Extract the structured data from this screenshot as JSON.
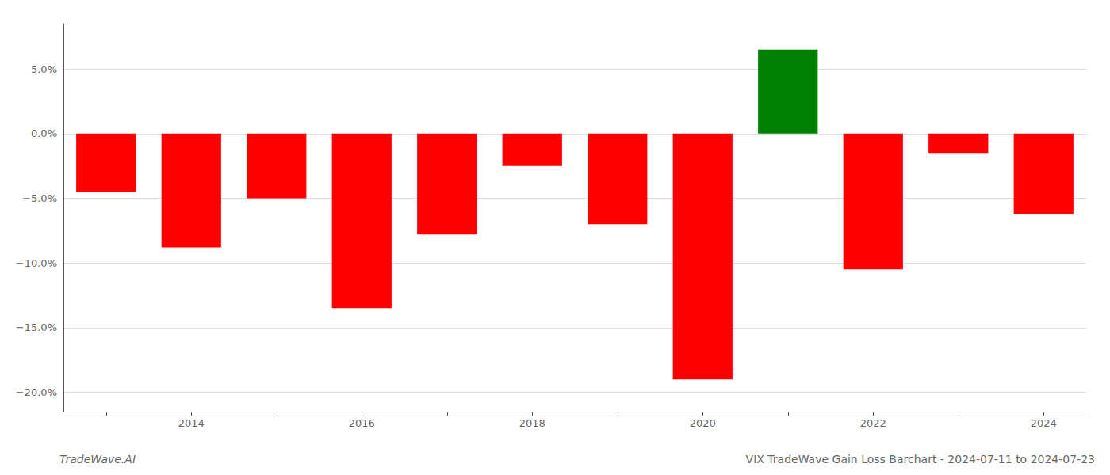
{
  "chart_data": {
    "type": "bar",
    "title": "VIX TradeWave Gain Loss Barchart - 2024-07-11 to 2024-07-23",
    "annotations": [
      "TradeWave.AI"
    ],
    "categories": [
      null,
      "2014",
      null,
      "2016",
      null,
      "2018",
      null,
      "2020",
      null,
      "2022",
      null,
      "2024"
    ],
    "values": [
      -0.045,
      -0.088,
      -0.05,
      -0.135,
      -0.078,
      -0.025,
      -0.07,
      -0.19,
      0.065,
      -0.105,
      -0.015,
      -0.062
    ],
    "colors": [
      "#ff0000",
      "#ff0000",
      "#ff0000",
      "#ff0000",
      "#ff0000",
      "#ff0000",
      "#ff0000",
      "#ff0000",
      "#008000",
      "#ff0000",
      "#ff0000",
      "#ff0000"
    ],
    "ylim": [
      -0.215,
      0.085
    ],
    "yticks": [
      {
        "value": -0.2,
        "label": "−20.0%"
      },
      {
        "value": -0.15,
        "label": "−15.0%"
      },
      {
        "value": -0.1,
        "label": "−10.0%"
      },
      {
        "value": -0.05,
        "label": "−5.0%"
      },
      {
        "value": 0.0,
        "label": "0.0%"
      },
      {
        "value": 0.05,
        "label": "5.0%"
      }
    ],
    "grid": true
  }
}
